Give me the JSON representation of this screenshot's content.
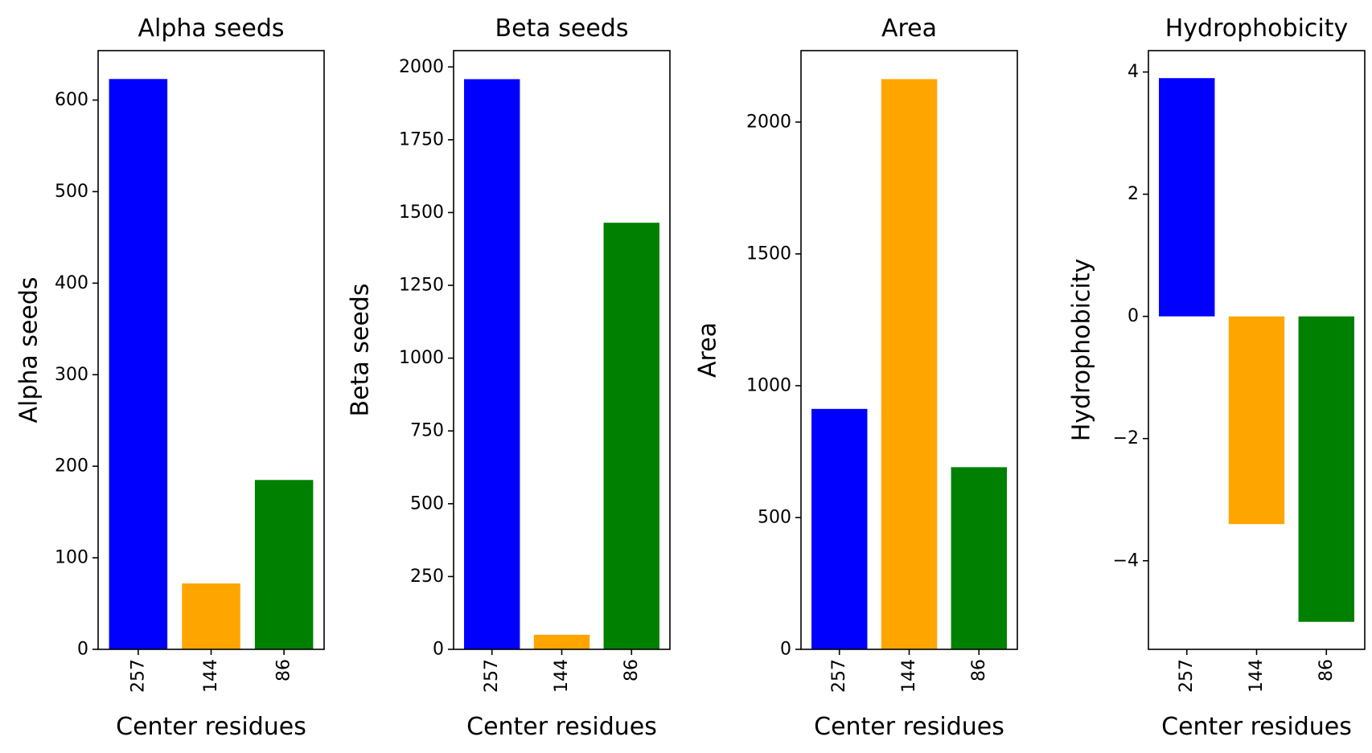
{
  "chart_data": [
    {
      "type": "bar",
      "title": "Alpha seeds",
      "xlabel": "Center residues",
      "ylabel": "Alpha seeds",
      "categories": [
        "257",
        "144",
        "86"
      ],
      "values": [
        623,
        72,
        185
      ],
      "colors": [
        "#0000ff",
        "#ffa500",
        "#008000"
      ],
      "ylim": [
        0,
        654
      ],
      "yticks": [
        0,
        100,
        200,
        300,
        400,
        500,
        600
      ],
      "ytick_labels": [
        "0",
        "100",
        "200",
        "300",
        "400",
        "500",
        "600"
      ],
      "grid": false
    },
    {
      "type": "bar",
      "title": "Beta seeds",
      "xlabel": "Center residues",
      "ylabel": "Beta seeds",
      "categories": [
        "257",
        "144",
        "86"
      ],
      "values": [
        1958,
        50,
        1465
      ],
      "colors": [
        "#0000ff",
        "#ffa500",
        "#008000"
      ],
      "ylim": [
        0,
        2056
      ],
      "yticks": [
        0,
        250,
        500,
        750,
        1000,
        1250,
        1500,
        1750,
        2000
      ],
      "ytick_labels": [
        "0",
        "250",
        "500",
        "750",
        "1000",
        "1250",
        "1500",
        "1750",
        "2000"
      ],
      "grid": false
    },
    {
      "type": "bar",
      "title": "Area",
      "xlabel": "Center residues",
      "ylabel": "Area",
      "categories": [
        "257",
        "144",
        "86"
      ],
      "values": [
        912,
        2163,
        691
      ],
      "colors": [
        "#0000ff",
        "#ffa500",
        "#008000"
      ],
      "ylim": [
        0,
        2271
      ],
      "yticks": [
        0,
        500,
        1000,
        1500,
        2000
      ],
      "ytick_labels": [
        "0",
        "500",
        "1000",
        "1500",
        "2000"
      ],
      "grid": false
    },
    {
      "type": "bar",
      "title": "Hydrophobicity",
      "xlabel": "Center residues",
      "ylabel": "Hydrophobicity",
      "categories": [
        "257",
        "144",
        "86"
      ],
      "values": [
        3.9,
        -3.4,
        -5.0
      ],
      "colors": [
        "#0000ff",
        "#ffa500",
        "#008000"
      ],
      "ylim": [
        -5.45,
        4.35
      ],
      "yticks": [
        -4,
        -2,
        0,
        2,
        4
      ],
      "ytick_labels": [
        "−4",
        "−2",
        "0",
        "2",
        "4"
      ],
      "grid": false
    }
  ]
}
